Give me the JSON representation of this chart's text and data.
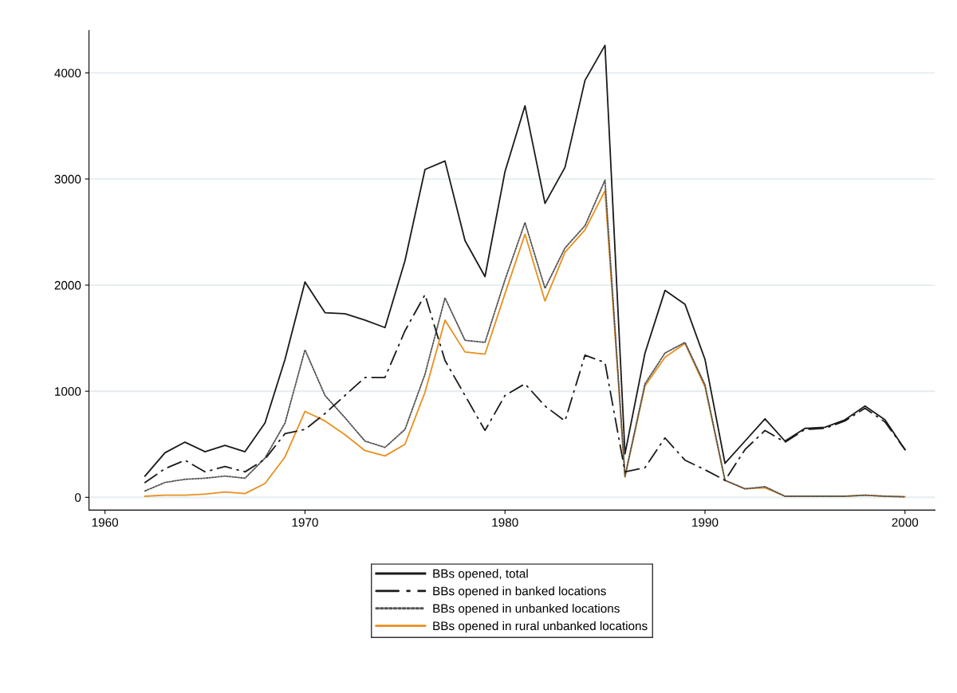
{
  "chart_data": {
    "type": "line",
    "x": [
      1962,
      1963,
      1964,
      1965,
      1966,
      1967,
      1968,
      1969,
      1970,
      1971,
      1972,
      1973,
      1974,
      1975,
      1976,
      1977,
      1978,
      1979,
      1980,
      1981,
      1982,
      1983,
      1984,
      1985,
      1986,
      1987,
      1988,
      1989,
      1990,
      1991,
      1992,
      1993,
      1994,
      1995,
      1996,
      1997,
      1998,
      1999,
      2000
    ],
    "series": [
      {
        "name": "BBs opened, total",
        "color": "#1a1a1a",
        "line_style": "solid",
        "values": [
          200,
          420,
          520,
          430,
          490,
          430,
          700,
          1300,
          2030,
          1740,
          1730,
          1670,
          1600,
          2230,
          3090,
          3170,
          2420,
          2080,
          3070,
          3690,
          2770,
          3110,
          3930,
          4260,
          410,
          1360,
          1950,
          1820,
          1300,
          320,
          530,
          740,
          530,
          650,
          660,
          730,
          860,
          730,
          450
        ]
      },
      {
        "name": "BBs opened in banked locations",
        "color": "#1a1a1a",
        "line_style": "dashdot",
        "values": [
          140,
          270,
          350,
          240,
          290,
          240,
          360,
          600,
          640,
          790,
          960,
          1130,
          1130,
          1570,
          1910,
          1290,
          960,
          630,
          960,
          1070,
          860,
          720,
          1340,
          1270,
          240,
          280,
          560,
          350,
          260,
          160,
          450,
          630,
          520,
          640,
          650,
          720,
          840,
          710,
          450
        ]
      },
      {
        "name": "BBs opened in unbanked locations",
        "color": "#555555",
        "line_style": "dotted",
        "values": [
          60,
          140,
          170,
          180,
          200,
          180,
          370,
          700,
          1390,
          960,
          750,
          530,
          470,
          640,
          1160,
          1880,
          1480,
          1460,
          2050,
          2590,
          1970,
          2350,
          2560,
          2990,
          200,
          1070,
          1360,
          1460,
          1060,
          160,
          80,
          100,
          10,
          10,
          10,
          10,
          20,
          10,
          5
        ]
      },
      {
        "name": "BBs opened in rural unbanked locations",
        "color": "#e8901e",
        "line_style": "solid",
        "values": [
          10,
          20,
          20,
          30,
          50,
          35,
          130,
          380,
          810,
          720,
          590,
          440,
          390,
          500,
          990,
          1670,
          1370,
          1350,
          1920,
          2480,
          1850,
          2310,
          2520,
          2890,
          190,
          1050,
          1320,
          1450,
          1040,
          160,
          80,
          90,
          10,
          10,
          10,
          10,
          20,
          10,
          5
        ]
      }
    ],
    "xlim": [
      1959.2,
      2001.5
    ],
    "xticks": [
      1960,
      1970,
      1980,
      1990,
      2000
    ],
    "ylim": [
      -120,
      4400
    ],
    "yticks": [
      0,
      1000,
      2000,
      3000,
      4000
    ],
    "grid": "y",
    "legend": "bottom"
  }
}
